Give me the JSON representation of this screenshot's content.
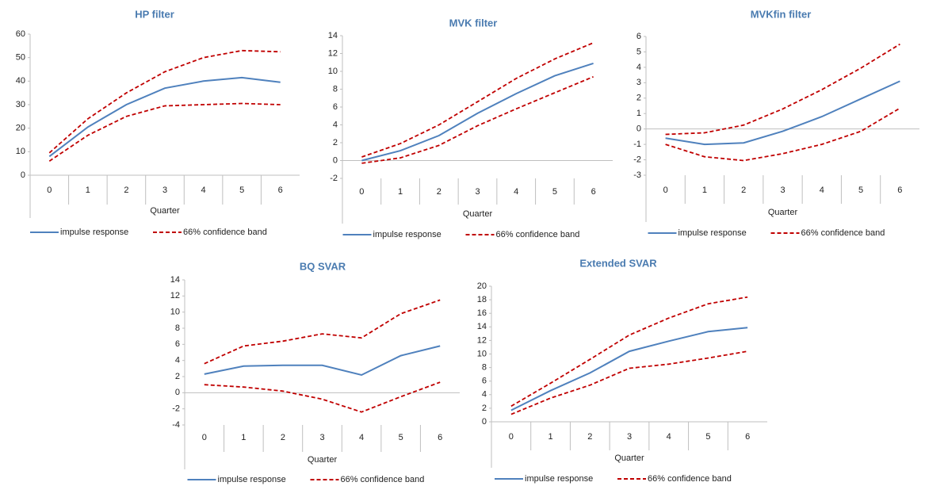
{
  "chart_data": [
    {
      "type": "line",
      "title": "HP filter",
      "xlabel": "Quarter",
      "categories": [
        "0",
        "1",
        "2",
        "3",
        "4",
        "5",
        "6"
      ],
      "ylim": [
        0,
        60
      ],
      "yticks": [
        0,
        10,
        20,
        30,
        40,
        50,
        60
      ],
      "series": [
        {
          "name": "impulse response",
          "color": "#4f81bd",
          "values": [
            8,
            20.5,
            30,
            37,
            40,
            41.5,
            39.5
          ]
        },
        {
          "name": "66% confidence band",
          "color": "#c00000",
          "dash": true,
          "upper": [
            9.5,
            24,
            35,
            44,
            50,
            53,
            52.5
          ],
          "lower": [
            6,
            17,
            25,
            29.5,
            30,
            30.5,
            30
          ]
        }
      ]
    },
    {
      "type": "line",
      "title": "MVK filter",
      "xlabel": "Quarter",
      "categories": [
        "0",
        "1",
        "2",
        "3",
        "4",
        "5",
        "6"
      ],
      "ylim": [
        -2,
        14
      ],
      "yticks": [
        -2,
        0,
        2,
        4,
        6,
        8,
        10,
        12,
        14
      ],
      "series": [
        {
          "name": "impulse response",
          "color": "#4f81bd",
          "values": [
            0,
            1.1,
            2.8,
            5.3,
            7.5,
            9.5,
            10.9
          ]
        },
        {
          "name": "66% confidence band",
          "color": "#c00000",
          "dash": true,
          "upper": [
            0.4,
            1.9,
            4,
            6.6,
            9.2,
            11.4,
            13.2
          ],
          "lower": [
            -0.3,
            0.3,
            1.7,
            3.9,
            5.8,
            7.6,
            9.4
          ]
        }
      ]
    },
    {
      "type": "line",
      "title": "MVKfin filter",
      "xlabel": "Quarter",
      "categories": [
        "0",
        "1",
        "2",
        "3",
        "4",
        "5",
        "6"
      ],
      "ylim": [
        -3,
        6
      ],
      "yticks": [
        -3,
        -2,
        -1,
        0,
        1,
        2,
        3,
        4,
        5,
        6
      ],
      "series": [
        {
          "name": "impulse response",
          "color": "#4f81bd",
          "values": [
            -0.6,
            -1.0,
            -0.9,
            -0.15,
            0.8,
            1.95,
            3.1
          ]
        },
        {
          "name": "66% confidence band",
          "color": "#c00000",
          "dash": true,
          "upper": [
            -0.35,
            -0.25,
            0.25,
            1.3,
            2.55,
            3.95,
            5.5
          ],
          "lower": [
            -1.0,
            -1.8,
            -2.05,
            -1.6,
            -1.0,
            -0.15,
            1.35
          ]
        }
      ]
    },
    {
      "type": "line",
      "title": "BQ SVAR",
      "xlabel": "Quarter",
      "categories": [
        "0",
        "1",
        "2",
        "3",
        "4",
        "5",
        "6"
      ],
      "ylim": [
        -4,
        14
      ],
      "yticks": [
        -4,
        -2,
        0,
        2,
        4,
        6,
        8,
        10,
        12,
        14
      ],
      "series": [
        {
          "name": "impulse response",
          "color": "#4f81bd",
          "values": [
            2.3,
            3.3,
            3.4,
            3.4,
            2.2,
            4.6,
            5.8
          ]
        },
        {
          "name": "66% confidence band",
          "color": "#c00000",
          "dash": true,
          "upper": [
            3.6,
            5.8,
            6.4,
            7.3,
            6.8,
            9.8,
            11.5
          ],
          "lower": [
            1.0,
            0.7,
            0.2,
            -0.8,
            -2.4,
            -0.5,
            1.3
          ]
        }
      ]
    },
    {
      "type": "line",
      "title": "Extended SVAR",
      "xlabel": "Quarter",
      "categories": [
        "0",
        "1",
        "2",
        "3",
        "4",
        "5",
        "6"
      ],
      "ylim": [
        0,
        20
      ],
      "yticks": [
        0,
        2,
        4,
        6,
        8,
        10,
        12,
        14,
        16,
        18,
        20
      ],
      "series": [
        {
          "name": "impulse response",
          "color": "#4f81bd",
          "values": [
            1.7,
            4.6,
            7.2,
            10.4,
            11.9,
            13.3,
            13.9
          ]
        },
        {
          "name": "66% confidence band",
          "color": "#c00000",
          "dash": true,
          "upper": [
            2.3,
            5.7,
            9.2,
            12.8,
            15.3,
            17.4,
            18.4
          ],
          "lower": [
            1.1,
            3.5,
            5.4,
            7.9,
            8.5,
            9.4,
            10.4
          ]
        }
      ]
    }
  ]
}
